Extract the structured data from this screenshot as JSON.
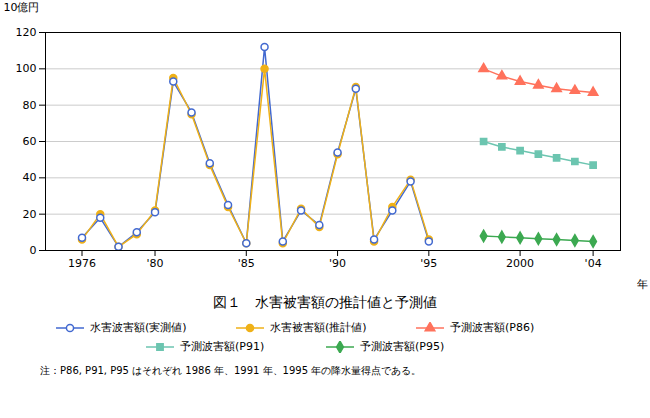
{
  "chart_data": {
    "type": "line",
    "title": "図１　水害被害額の推計値と予測値",
    "ylabel": "10億円",
    "xlabel": "年",
    "note": "注：P86, P91, P95 はそれぞれ 1986 年、1991 年、1995 年の降水量得点である。",
    "series": [
      {
        "name": "水害波害額(実測値)",
        "marker": "circle-open",
        "x": [
          1976,
          1977,
          1978,
          1979,
          1980,
          1981,
          1982,
          1983,
          1984,
          1985,
          1986,
          1987,
          1988,
          1989,
          1990,
          1991,
          1992,
          1993,
          1994,
          1995
        ],
        "values": [
          7,
          18,
          2,
          10,
          21,
          93,
          76,
          48,
          25,
          4,
          112,
          5,
          22,
          14,
          54,
          89,
          6,
          22,
          38,
          5
        ]
      },
      {
        "name": "水害被害額(推計値)",
        "marker": "circle",
        "x": [
          1976,
          1977,
          1978,
          1979,
          1980,
          1981,
          1982,
          1983,
          1984,
          1985,
          1986,
          1987,
          1988,
          1989,
          1990,
          1991,
          1992,
          1993,
          1994,
          1995
        ],
        "values": [
          6,
          20,
          2,
          9,
          22,
          95,
          75,
          47,
          24,
          4,
          100,
          4,
          23,
          13,
          53,
          90,
          5,
          24,
          39,
          6
        ]
      },
      {
        "name": "予測波害額(P86)",
        "marker": "triangle",
        "x": [
          1998,
          1999,
          2000,
          2001,
          2002,
          2003,
          2004
        ],
        "values": [
          100,
          96,
          93,
          91,
          89,
          88,
          87
        ]
      },
      {
        "name": "予測波害額(P91)",
        "marker": "square",
        "x": [
          1998,
          1999,
          2000,
          2001,
          2002,
          2003,
          2004
        ],
        "values": [
          60,
          57,
          55,
          53,
          51,
          49,
          47
        ]
      },
      {
        "name": "予測波害額(P95)",
        "marker": "diamond",
        "x": [
          1998,
          1999,
          2000,
          2001,
          2002,
          2003,
          2004
        ],
        "values": [
          8,
          7.5,
          7,
          6.5,
          6,
          5.5,
          5
        ]
      }
    ],
    "xlim": [
      1974,
      2005.5
    ],
    "xticks": [
      1976,
      {
        "value": 1980,
        "label": "'80"
      },
      {
        "value": 1985,
        "label": "'85"
      },
      {
        "value": 1990,
        "label": "'90"
      },
      {
        "value": 1995,
        "label": "'95"
      },
      2000,
      {
        "value": 2004,
        "label": "'04"
      }
    ],
    "ylim": [
      0,
      120
    ],
    "yticks": [
      0,
      20,
      40,
      60,
      80,
      100,
      120
    ],
    "grid": true
  }
}
